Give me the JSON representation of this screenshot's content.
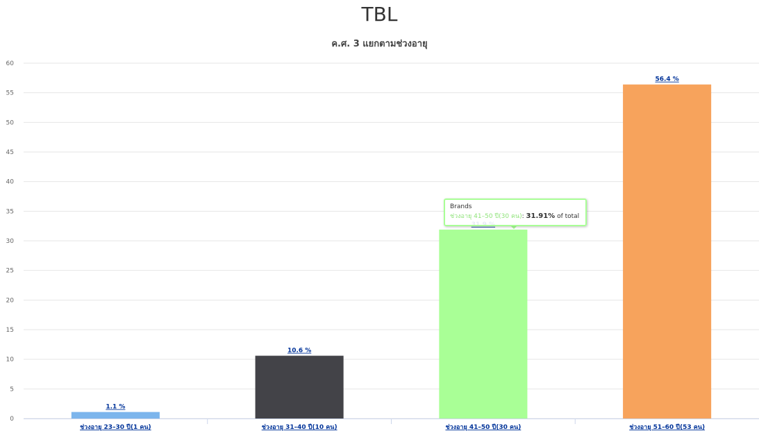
{
  "chart_data": {
    "type": "bar",
    "title": "TBL",
    "subtitle": "ค.ศ. 3 แยกตามช่วงอายุ",
    "categories": [
      "ช่วงอายุ 23–30 ปี(1 คน)",
      "ช่วงอายุ 31–40 ปี(10 คน)",
      "ช่วงอายุ 41–50 ปี(30 คน)",
      "ช่วงอายุ 51–60 ปี(53 คน)"
    ],
    "values": [
      1.1,
      10.6,
      31.9,
      56.4
    ],
    "data_labels": [
      "1.1 %",
      "10.6 %",
      "31.9 %",
      "56.4 %"
    ],
    "colors": [
      "#7cb5ec",
      "#434348",
      "#a9ff96",
      "#f7a35c"
    ],
    "ylim": [
      0,
      60
    ],
    "yticks": [
      0,
      5,
      10,
      15,
      20,
      25,
      30,
      35,
      40,
      45,
      50,
      55,
      60
    ],
    "xlabel": "",
    "ylabel": "",
    "grid": true,
    "legend": "none"
  },
  "tooltip": {
    "series": "Brands",
    "point": "ช่วงอายุ 41–50 ปี(30 คน)",
    "sep": ": ",
    "value": "31.91%",
    "suffix": " of total"
  }
}
